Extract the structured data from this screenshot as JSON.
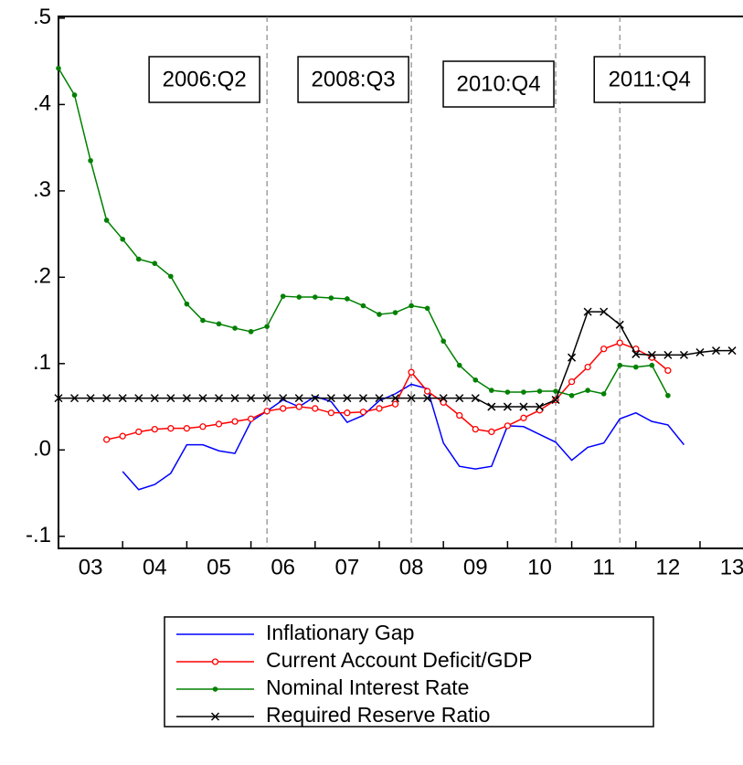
{
  "chart_data": {
    "type": "line",
    "x": [
      2003,
      2003.25,
      2003.5,
      2003.75,
      2004,
      2004.25,
      2004.5,
      2004.75,
      2005,
      2005.25,
      2005.5,
      2005.75,
      2006,
      2006.25,
      2006.5,
      2006.75,
      2007,
      2007.25,
      2007.5,
      2007.75,
      2008,
      2008.25,
      2008.5,
      2008.75,
      2009,
      2009.25,
      2009.5,
      2009.75,
      2010,
      2010.25,
      2010.5,
      2010.75,
      2011,
      2011.25,
      2011.5,
      2011.75,
      2012,
      2012.25,
      2012.5,
      2012.75,
      2013,
      2013.25,
      2013.5
    ],
    "series": [
      {
        "name": "Inflationary Gap",
        "color": "#0000ff",
        "marker": "none",
        "values": [
          null,
          null,
          null,
          null,
          -0.025,
          -0.046,
          -0.04,
          -0.027,
          0.006,
          0.006,
          -0.001,
          -0.004,
          0.033,
          0.045,
          0.058,
          0.05,
          0.062,
          0.056,
          0.032,
          0.04,
          0.057,
          0.065,
          0.076,
          0.071,
          0.008,
          -0.019,
          -0.022,
          -0.019,
          0.028,
          0.027,
          0.018,
          0.009,
          -0.012,
          0.003,
          0.008,
          0.036,
          0.043,
          0.033,
          0.029,
          0.006,
          null,
          null,
          null
        ]
      },
      {
        "name": "Current Account Deficit/GDP",
        "color": "#ff0000",
        "marker": "open-circle",
        "values": [
          null,
          null,
          null,
          0.012,
          0.016,
          0.021,
          0.024,
          0.025,
          0.025,
          0.027,
          0.03,
          0.033,
          0.036,
          0.045,
          0.048,
          0.05,
          0.048,
          0.043,
          0.043,
          0.044,
          0.048,
          0.053,
          0.09,
          0.068,
          0.055,
          0.04,
          0.024,
          0.021,
          0.028,
          0.037,
          0.046,
          0.058,
          0.079,
          0.096,
          0.117,
          0.124,
          0.117,
          0.107,
          0.092,
          null,
          null,
          null,
          null
        ]
      },
      {
        "name": "Nominal Interest Rate",
        "color": "#008000",
        "marker": "dot",
        "values": [
          0.442,
          0.411,
          0.335,
          0.266,
          0.244,
          0.221,
          0.216,
          0.201,
          0.169,
          0.15,
          0.146,
          0.141,
          0.137,
          0.143,
          0.178,
          0.177,
          0.177,
          0.176,
          0.175,
          0.167,
          0.157,
          0.159,
          0.167,
          0.164,
          0.126,
          0.098,
          0.081,
          0.069,
          0.067,
          0.067,
          0.068,
          0.068,
          0.063,
          0.069,
          0.065,
          0.098,
          0.096,
          0.098,
          0.063,
          null,
          null,
          null,
          null
        ]
      },
      {
        "name": "Required Reserve Ratio",
        "color": "#000000",
        "marker": "cross",
        "values": [
          0.06,
          0.06,
          0.06,
          0.06,
          0.06,
          0.06,
          0.06,
          0.06,
          0.06,
          0.06,
          0.06,
          0.06,
          0.06,
          0.06,
          0.06,
          0.06,
          0.06,
          0.06,
          0.06,
          0.06,
          0.06,
          0.06,
          0.06,
          0.06,
          0.06,
          0.06,
          0.06,
          0.05,
          0.05,
          0.05,
          0.05,
          0.058,
          0.107,
          0.16,
          0.16,
          0.145,
          0.111,
          0.11,
          0.11,
          0.11,
          0.113,
          0.115,
          0.115
        ]
      }
    ],
    "xlim": [
      2003,
      2013.67
    ],
    "xticks": [
      {
        "value": 2003,
        "label": "03"
      },
      {
        "value": 2004,
        "label": "04"
      },
      {
        "value": 2005,
        "label": "05"
      },
      {
        "value": 2006,
        "label": "06"
      },
      {
        "value": 2007,
        "label": "07"
      },
      {
        "value": 2008,
        "label": "08"
      },
      {
        "value": 2009,
        "label": "09"
      },
      {
        "value": 2010,
        "label": "10"
      },
      {
        "value": 2011,
        "label": "11"
      },
      {
        "value": 2012,
        "label": "12"
      },
      {
        "value": 2013,
        "label": "13"
      }
    ],
    "ylim": [
      -0.114,
      0.502
    ],
    "yticks": [
      {
        "value": -0.1,
        "label": "-.1"
      },
      {
        "value": 0,
        "label": ".0"
      },
      {
        "value": 0.1,
        "label": ".1"
      },
      {
        "value": 0.2,
        "label": ".2"
      },
      {
        "value": 0.3,
        "label": ".3"
      },
      {
        "value": 0.4,
        "label": ".4"
      },
      {
        "value": 0.5,
        "label": ".5"
      }
    ],
    "annotations": [
      {
        "text": "2006:Q2",
        "x": 2006.25
      },
      {
        "text": "2008:Q3",
        "x": 2008.5
      },
      {
        "text": "2010:Q4",
        "x": 2010.75
      },
      {
        "text": "2011:Q4",
        "x": 2011.75
      }
    ]
  }
}
